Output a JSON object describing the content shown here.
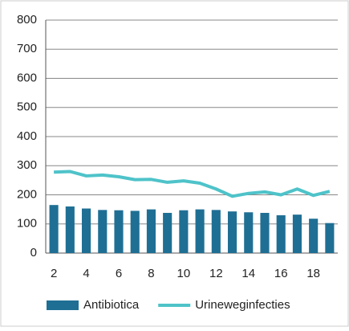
{
  "chart_data": {
    "type": "combo",
    "categories": [
      "2",
      null,
      "4",
      null,
      "6",
      null,
      "8",
      null,
      "10",
      null,
      "12",
      null,
      "14",
      null,
      "16",
      null,
      "18",
      null
    ],
    "series": [
      {
        "name": "Antibiotica",
        "type": "bar",
        "color": "#1f6f94",
        "values": [
          165,
          160,
          153,
          148,
          147,
          145,
          150,
          138,
          147,
          150,
          148,
          143,
          140,
          138,
          130,
          132,
          118,
          103
        ]
      },
      {
        "name": "Urineweginfecties",
        "type": "line",
        "color": "#4ec3c9",
        "values": [
          278,
          280,
          265,
          268,
          262,
          252,
          253,
          243,
          248,
          240,
          220,
          195,
          205,
          210,
          200,
          220,
          198,
          212
        ]
      }
    ],
    "ylim": [
      0,
      800
    ],
    "yticks": [
      0,
      100,
      200,
      300,
      400,
      500,
      600,
      700,
      800
    ],
    "grid": true,
    "legend": "bottom"
  }
}
